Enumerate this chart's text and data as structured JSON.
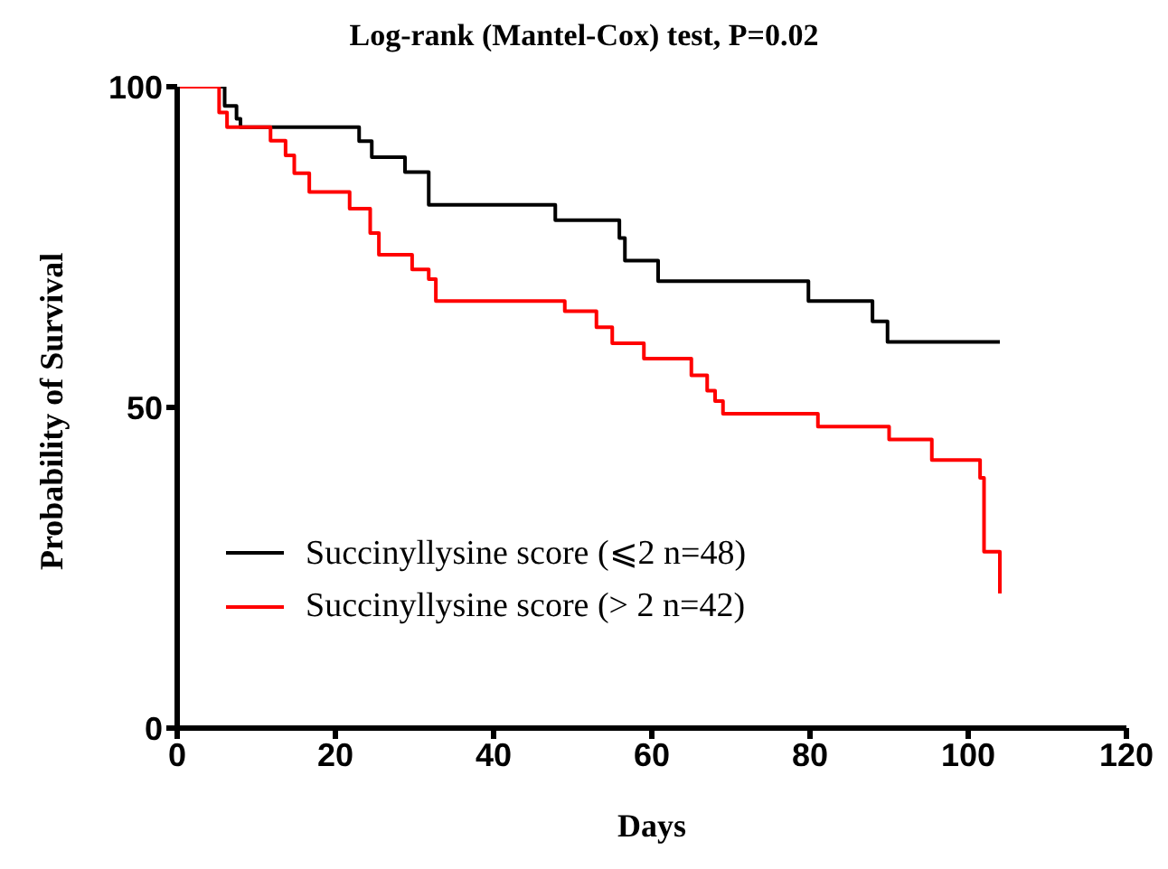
{
  "chart_data": {
    "type": "step",
    "title": "Log-rank (Mantel-Cox) test, P=0.02",
    "xlabel": "Days",
    "ylabel": "Probability of Survival",
    "xlim": [
      0,
      120
    ],
    "xticks": [
      0,
      20,
      40,
      60,
      80,
      100,
      120
    ],
    "ylim": [
      0,
      100
    ],
    "yticks": [
      0,
      50,
      100
    ],
    "legend": "bottom left",
    "series": [
      {
        "name": "Succinyllysine score (⩽2 n=48)",
        "color": "#000000",
        "x": [
          0,
          6,
          7.5,
          8,
          23,
          24.6,
          28.8,
          31.8,
          47.8,
          55.9,
          56.6,
          60.8,
          79.8,
          87.9,
          89.8,
          104
        ],
        "values": [
          100,
          97,
          95,
          93.7,
          91.5,
          89,
          86.7,
          81.6,
          79.2,
          76.4,
          72.9,
          69.7,
          66.6,
          63.4,
          60.2,
          60.2
        ]
      },
      {
        "name": "Succinyllysine score (> 2 n=42)",
        "color": "#ff0000",
        "x": [
          0,
          5.3,
          6.3,
          11.8,
          13.7,
          14.8,
          16.7,
          21.8,
          24.4,
          25.5,
          29.7,
          31.8,
          32.7,
          49,
          53,
          55,
          59,
          65,
          67,
          68,
          69,
          81,
          90,
          95.4,
          101.5,
          102,
          104
        ],
        "values": [
          100,
          96,
          93.7,
          91.6,
          89.3,
          86.5,
          83.6,
          81,
          77.2,
          73.8,
          71.5,
          70,
          66.6,
          65,
          62.5,
          60,
          57.6,
          55,
          52.6,
          51,
          49,
          47,
          45,
          41.8,
          39,
          27.5,
          21
        ]
      }
    ]
  }
}
